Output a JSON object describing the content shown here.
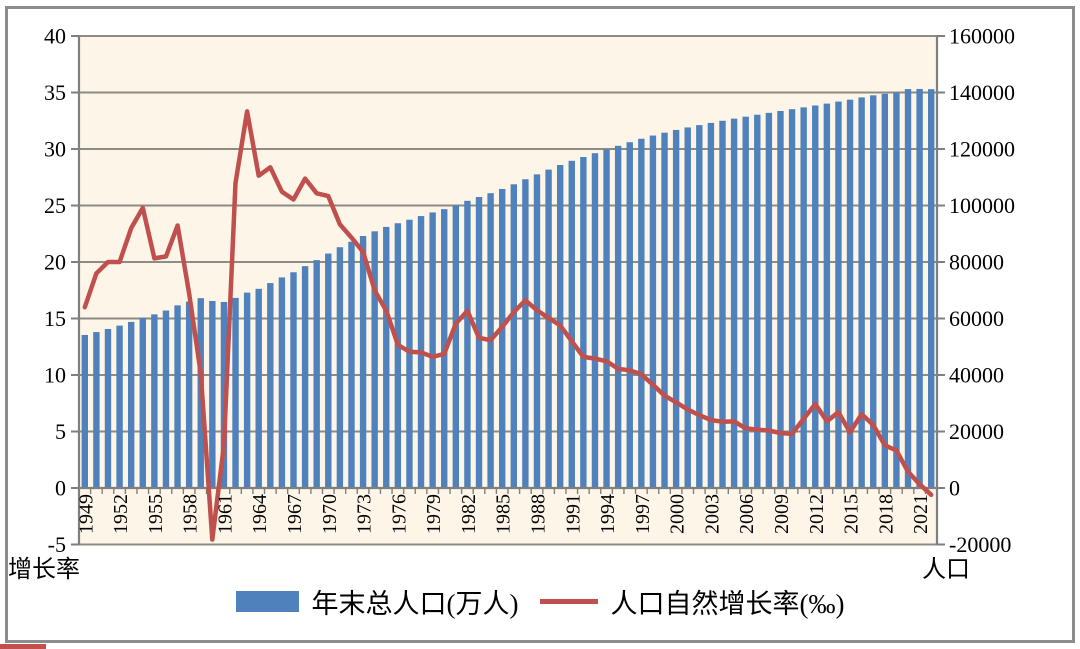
{
  "frame": {
    "border_color": "#8C8C8C",
    "background": "#FFFFFF",
    "accent_mark_color": "#C0504D"
  },
  "legend": {
    "items": [
      {
        "label": "年末总人口(万人)",
        "marker": "box",
        "color": "#4F81BD"
      },
      {
        "label": "人口自然增长率(‰)",
        "marker": "line",
        "color": "#C0504D"
      }
    ]
  },
  "chart_data": {
    "type": "combo-bar-line",
    "plot_background": "#FDF5E8",
    "grid_color": "#8C8C84",
    "axis_color": "#7F7F7F",
    "text_color": "#000000",
    "grid_on": true,
    "legend_position": "bottom-center",
    "categories": [
      1949,
      1950,
      1951,
      1952,
      1953,
      1954,
      1955,
      1956,
      1957,
      1958,
      1959,
      1960,
      1961,
      1962,
      1963,
      1964,
      1965,
      1966,
      1967,
      1968,
      1969,
      1970,
      1971,
      1972,
      1973,
      1974,
      1975,
      1976,
      1977,
      1978,
      1979,
      1980,
      1981,
      1982,
      1983,
      1984,
      1985,
      1986,
      1987,
      1988,
      1989,
      1990,
      1991,
      1992,
      1993,
      1994,
      1995,
      1996,
      1997,
      1998,
      1999,
      2000,
      2001,
      2002,
      2003,
      2004,
      2005,
      2006,
      2007,
      2008,
      2009,
      2010,
      2011,
      2012,
      2013,
      2014,
      2015,
      2016,
      2017,
      2018,
      2019,
      2020,
      2021,
      2022
    ],
    "x_axis": {
      "label_every": 3,
      "tick_labels": [
        "1949",
        "1952",
        "1955",
        "1958",
        "1961",
        "1964",
        "1967",
        "1970",
        "1973",
        "1976",
        "1979",
        "1982",
        "1985",
        "1988",
        "1991",
        "1994",
        "1997",
        "2000",
        "2003",
        "2006",
        "2009",
        "2012",
        "2015",
        "2018",
        "2021"
      ]
    },
    "left_axis": {
      "title": "增长率",
      "min": -5,
      "max": 40,
      "step": 5,
      "tick_labels": [
        "40",
        "35",
        "30",
        "25",
        "20",
        "15",
        "10",
        "5",
        "0",
        "-5"
      ]
    },
    "right_axis": {
      "title": "人口",
      "min": -20000,
      "max": 160000,
      "step": 20000,
      "tick_labels": [
        "160000",
        "140000",
        "120000",
        "100000",
        "80000",
        "60000",
        "40000",
        "20000",
        "0",
        "-20000"
      ]
    },
    "series": [
      {
        "name": "年末总人口(万人)",
        "type": "bar",
        "axis": "right",
        "color": "#4F81BD",
        "values": [
          54167,
          55196,
          56300,
          57482,
          58796,
          60266,
          61465,
          62828,
          64653,
          65994,
          67207,
          66207,
          65859,
          67295,
          69172,
          70499,
          72538,
          74542,
          76368,
          78534,
          80671,
          82992,
          85229,
          87177,
          89211,
          90859,
          92420,
          93717,
          94974,
          96259,
          97542,
          98705,
          100072,
          101654,
          103008,
          104357,
          105851,
          107507,
          109300,
          111026,
          112704,
          114333,
          115823,
          117171,
          118517,
          119850,
          121121,
          122389,
          123626,
          124761,
          125786,
          126743,
          127627,
          128453,
          129227,
          129988,
          130756,
          131448,
          132129,
          132802,
          133450,
          134091,
          134735,
          135404,
          136072,
          136782,
          137462,
          138271,
          139008,
          139538,
          140005,
          141212,
          141260,
          141175
        ]
      },
      {
        "name": "人口自然增长率(‰)",
        "type": "line",
        "axis": "left",
        "color": "#C0504D",
        "values": [
          16.0,
          19.0,
          20.0,
          20.0,
          23.0,
          24.79,
          20.32,
          20.5,
          23.23,
          17.24,
          10.19,
          -4.57,
          3.78,
          26.99,
          33.33,
          27.64,
          28.38,
          26.22,
          25.53,
          27.38,
          26.08,
          25.83,
          23.33,
          22.16,
          20.89,
          17.48,
          15.69,
          12.66,
          12.06,
          12.0,
          11.61,
          11.87,
          14.55,
          15.68,
          13.29,
          13.08,
          14.26,
          15.57,
          16.61,
          15.73,
          15.04,
          14.39,
          12.98,
          11.6,
          11.45,
          11.21,
          10.55,
          10.42,
          10.06,
          9.14,
          8.18,
          7.58,
          6.95,
          6.45,
          6.01,
          5.87,
          5.89,
          5.28,
          5.17,
          5.08,
          4.87,
          4.79,
          6.13,
          7.43,
          5.9,
          6.71,
          4.93,
          6.53,
          5.58,
          3.78,
          3.32,
          1.45,
          0.34,
          -0.6
        ]
      }
    ]
  }
}
